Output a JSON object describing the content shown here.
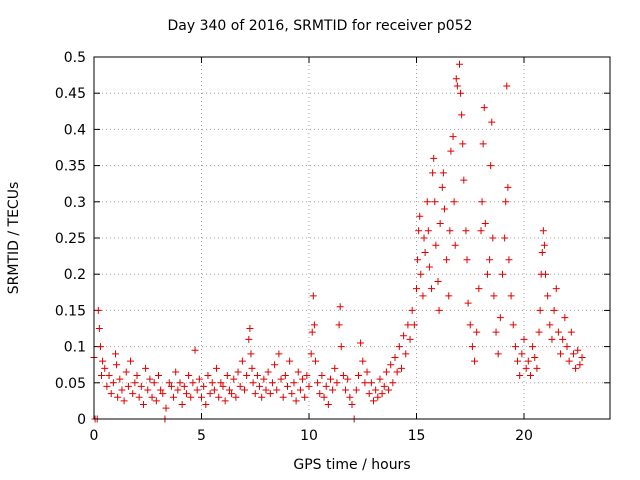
{
  "chart_data": {
    "type": "scatter",
    "title": "Day 340 of 2016, SRMTID for receiver p052",
    "xlabel": "GPS time / hours",
    "ylabel": "SRMTID / TECUs",
    "xlim": [
      0,
      24
    ],
    "ylim": [
      0,
      0.5
    ],
    "xticks": [
      0,
      5,
      10,
      15,
      20
    ],
    "xtick_labels": [
      "0",
      "5",
      "10",
      "15",
      "20"
    ],
    "yticks": [
      0,
      0.05,
      0.1,
      0.15,
      0.2,
      0.25,
      0.3,
      0.35,
      0.4,
      0.45,
      0.5
    ],
    "ytick_labels": [
      "0",
      "0.05",
      "0.1",
      "0.15",
      "0.2",
      "0.25",
      "0.3",
      "0.35",
      "0.4",
      "0.45",
      "0.5"
    ],
    "grid": true,
    "marker": "+",
    "color": "#e00000",
    "series": [
      {
        "name": "SRMTID",
        "points": [
          [
            0.0,
            0.085
          ],
          [
            0.05,
            0.0
          ],
          [
            0.15,
            0.0
          ],
          [
            0.2,
            0.15
          ],
          [
            0.25,
            0.125
          ],
          [
            0.3,
            0.1
          ],
          [
            0.35,
            0.06
          ],
          [
            0.4,
            0.08
          ],
          [
            0.5,
            0.07
          ],
          [
            0.6,
            0.045
          ],
          [
            0.7,
            0.06
          ],
          [
            0.8,
            0.035
          ],
          [
            0.9,
            0.05
          ],
          [
            1.0,
            0.09
          ],
          [
            1.05,
            0.075
          ],
          [
            1.1,
            0.03
          ],
          [
            1.2,
            0.055
          ],
          [
            1.3,
            0.04
          ],
          [
            1.4,
            0.025
          ],
          [
            1.5,
            0.065
          ],
          [
            1.6,
            0.045
          ],
          [
            1.7,
            0.08
          ],
          [
            1.8,
            0.035
          ],
          [
            1.9,
            0.05
          ],
          [
            2.0,
            0.06
          ],
          [
            2.1,
            0.03
          ],
          [
            2.2,
            0.045
          ],
          [
            2.3,
            0.02
          ],
          [
            2.4,
            0.07
          ],
          [
            2.5,
            0.04
          ],
          [
            2.6,
            0.055
          ],
          [
            2.7,
            0.03
          ],
          [
            2.8,
            0.05
          ],
          [
            2.9,
            0.025
          ],
          [
            3.0,
            0.06
          ],
          [
            3.1,
            0.04
          ],
          [
            3.2,
            0.035
          ],
          [
            3.3,
            0.0
          ],
          [
            3.35,
            0.015
          ],
          [
            3.5,
            0.05
          ],
          [
            3.6,
            0.045
          ],
          [
            3.7,
            0.03
          ],
          [
            3.8,
            0.065
          ],
          [
            3.9,
            0.04
          ],
          [
            4.0,
            0.05
          ],
          [
            4.1,
            0.02
          ],
          [
            4.2,
            0.045
          ],
          [
            4.3,
            0.035
          ],
          [
            4.4,
            0.06
          ],
          [
            4.5,
            0.03
          ],
          [
            4.6,
            0.05
          ],
          [
            4.7,
            0.095
          ],
          [
            4.8,
            0.04
          ],
          [
            4.9,
            0.055
          ],
          [
            5.0,
            0.03
          ],
          [
            5.1,
            0.045
          ],
          [
            5.2,
            0.02
          ],
          [
            5.3,
            0.06
          ],
          [
            5.4,
            0.035
          ],
          [
            5.5,
            0.05
          ],
          [
            5.6,
            0.04
          ],
          [
            5.7,
            0.07
          ],
          [
            5.8,
            0.03
          ],
          [
            5.9,
            0.05
          ],
          [
            6.0,
            0.045
          ],
          [
            6.1,
            0.025
          ],
          [
            6.2,
            0.06
          ],
          [
            6.3,
            0.04
          ],
          [
            6.4,
            0.035
          ],
          [
            6.5,
            0.055
          ],
          [
            6.6,
            0.03
          ],
          [
            6.7,
            0.065
          ],
          [
            6.8,
            0.045
          ],
          [
            6.9,
            0.08
          ],
          [
            7.0,
            0.04
          ],
          [
            7.1,
            0.06
          ],
          [
            7.2,
            0.11
          ],
          [
            7.25,
            0.125
          ],
          [
            7.3,
            0.09
          ],
          [
            7.35,
            0.07
          ],
          [
            7.4,
            0.05
          ],
          [
            7.5,
            0.035
          ],
          [
            7.6,
            0.06
          ],
          [
            7.7,
            0.045
          ],
          [
            7.8,
            0.03
          ],
          [
            7.9,
            0.055
          ],
          [
            8.0,
            0.04
          ],
          [
            8.1,
            0.065
          ],
          [
            8.2,
            0.035
          ],
          [
            8.3,
            0.05
          ],
          [
            8.4,
            0.075
          ],
          [
            8.5,
            0.04
          ],
          [
            8.6,
            0.09
          ],
          [
            8.7,
            0.055
          ],
          [
            8.8,
            0.03
          ],
          [
            8.9,
            0.06
          ],
          [
            9.0,
            0.045
          ],
          [
            9.1,
            0.08
          ],
          [
            9.2,
            0.035
          ],
          [
            9.3,
            0.05
          ],
          [
            9.4,
            0.025
          ],
          [
            9.5,
            0.065
          ],
          [
            9.6,
            0.04
          ],
          [
            9.7,
            0.055
          ],
          [
            9.8,
            0.03
          ],
          [
            9.9,
            0.06
          ],
          [
            10.0,
            0.045
          ],
          [
            10.1,
            0.09
          ],
          [
            10.15,
            0.12
          ],
          [
            10.2,
            0.17
          ],
          [
            10.25,
            0.13
          ],
          [
            10.3,
            0.08
          ],
          [
            10.4,
            0.05
          ],
          [
            10.5,
            0.035
          ],
          [
            10.6,
            0.06
          ],
          [
            10.7,
            0.03
          ],
          [
            10.8,
            0.045
          ],
          [
            10.9,
            0.02
          ],
          [
            11.0,
            0.055
          ],
          [
            11.1,
            0.04
          ],
          [
            11.2,
            0.07
          ],
          [
            11.3,
            0.05
          ],
          [
            11.4,
            0.13
          ],
          [
            11.45,
            0.155
          ],
          [
            11.5,
            0.1
          ],
          [
            11.6,
            0.06
          ],
          [
            11.7,
            0.04
          ],
          [
            11.8,
            0.055
          ],
          [
            11.9,
            0.03
          ],
          [
            12.0,
            0.02
          ],
          [
            12.1,
            0.0
          ],
          [
            12.2,
            0.04
          ],
          [
            12.3,
            0.06
          ],
          [
            12.4,
            0.105
          ],
          [
            12.5,
            0.08
          ],
          [
            12.6,
            0.05
          ],
          [
            12.7,
            0.065
          ],
          [
            12.8,
            0.035
          ],
          [
            12.9,
            0.05
          ],
          [
            13.0,
            0.025
          ],
          [
            13.1,
            0.04
          ],
          [
            13.2,
            0.03
          ],
          [
            13.3,
            0.055
          ],
          [
            13.4,
            0.035
          ],
          [
            13.5,
            0.045
          ],
          [
            13.6,
            0.065
          ],
          [
            13.7,
            0.04
          ],
          [
            13.8,
            0.075
          ],
          [
            13.9,
            0.05
          ],
          [
            14.0,
            0.085
          ],
          [
            14.1,
            0.065
          ],
          [
            14.2,
            0.1
          ],
          [
            14.3,
            0.07
          ],
          [
            14.4,
            0.115
          ],
          [
            14.5,
            0.09
          ],
          [
            14.6,
            0.13
          ],
          [
            14.7,
            0.11
          ],
          [
            14.8,
            0.15
          ],
          [
            14.9,
            0.13
          ],
          [
            15.0,
            0.18
          ],
          [
            15.05,
            0.22
          ],
          [
            15.1,
            0.26
          ],
          [
            15.15,
            0.28
          ],
          [
            15.2,
            0.2
          ],
          [
            15.3,
            0.17
          ],
          [
            15.35,
            0.25
          ],
          [
            15.4,
            0.23
          ],
          [
            15.5,
            0.3
          ],
          [
            15.55,
            0.26
          ],
          [
            15.6,
            0.21
          ],
          [
            15.7,
            0.18
          ],
          [
            15.75,
            0.34
          ],
          [
            15.8,
            0.36
          ],
          [
            15.85,
            0.3
          ],
          [
            15.9,
            0.24
          ],
          [
            16.0,
            0.19
          ],
          [
            16.05,
            0.15
          ],
          [
            16.1,
            0.27
          ],
          [
            16.2,
            0.32
          ],
          [
            16.25,
            0.34
          ],
          [
            16.3,
            0.29
          ],
          [
            16.4,
            0.22
          ],
          [
            16.5,
            0.17
          ],
          [
            16.55,
            0.26
          ],
          [
            16.6,
            0.37
          ],
          [
            16.7,
            0.39
          ],
          [
            16.75,
            0.3
          ],
          [
            16.8,
            0.24
          ],
          [
            16.85,
            0.47
          ],
          [
            16.9,
            0.46
          ],
          [
            17.0,
            0.49
          ],
          [
            17.05,
            0.45
          ],
          [
            17.1,
            0.42
          ],
          [
            17.15,
            0.38
          ],
          [
            17.2,
            0.33
          ],
          [
            17.3,
            0.26
          ],
          [
            17.35,
            0.22
          ],
          [
            17.4,
            0.16
          ],
          [
            17.5,
            0.13
          ],
          [
            17.6,
            0.1
          ],
          [
            17.7,
            0.08
          ],
          [
            17.8,
            0.12
          ],
          [
            17.9,
            0.18
          ],
          [
            18.0,
            0.26
          ],
          [
            18.05,
            0.3
          ],
          [
            18.1,
            0.38
          ],
          [
            18.15,
            0.43
          ],
          [
            18.2,
            0.27
          ],
          [
            18.3,
            0.2
          ],
          [
            18.4,
            0.22
          ],
          [
            18.45,
            0.35
          ],
          [
            18.5,
            0.41
          ],
          [
            18.55,
            0.25
          ],
          [
            18.6,
            0.17
          ],
          [
            18.7,
            0.12
          ],
          [
            18.8,
            0.09
          ],
          [
            18.9,
            0.14
          ],
          [
            19.0,
            0.2
          ],
          [
            19.1,
            0.25
          ],
          [
            19.15,
            0.3
          ],
          [
            19.2,
            0.46
          ],
          [
            19.25,
            0.32
          ],
          [
            19.3,
            0.22
          ],
          [
            19.4,
            0.17
          ],
          [
            19.5,
            0.13
          ],
          [
            19.6,
            0.1
          ],
          [
            19.7,
            0.08
          ],
          [
            19.8,
            0.06
          ],
          [
            19.9,
            0.09
          ],
          [
            20.0,
            0.11
          ],
          [
            20.1,
            0.07
          ],
          [
            20.2,
            0.08
          ],
          [
            20.3,
            0.06
          ],
          [
            20.4,
            0.1
          ],
          [
            20.5,
            0.085
          ],
          [
            20.6,
            0.07
          ],
          [
            20.7,
            0.12
          ],
          [
            20.75,
            0.15
          ],
          [
            20.8,
            0.2
          ],
          [
            20.85,
            0.23
          ],
          [
            20.9,
            0.26
          ],
          [
            20.95,
            0.24
          ],
          [
            21.0,
            0.2
          ],
          [
            21.1,
            0.17
          ],
          [
            21.2,
            0.13
          ],
          [
            21.3,
            0.11
          ],
          [
            21.4,
            0.15
          ],
          [
            21.5,
            0.18
          ],
          [
            21.6,
            0.12
          ],
          [
            21.7,
            0.09
          ],
          [
            21.8,
            0.11
          ],
          [
            21.9,
            0.14
          ],
          [
            22.0,
            0.1
          ],
          [
            22.1,
            0.08
          ],
          [
            22.2,
            0.12
          ],
          [
            22.3,
            0.09
          ],
          [
            22.4,
            0.07
          ],
          [
            22.5,
            0.095
          ],
          [
            22.6,
            0.075
          ],
          [
            22.7,
            0.085
          ]
        ]
      }
    ]
  }
}
